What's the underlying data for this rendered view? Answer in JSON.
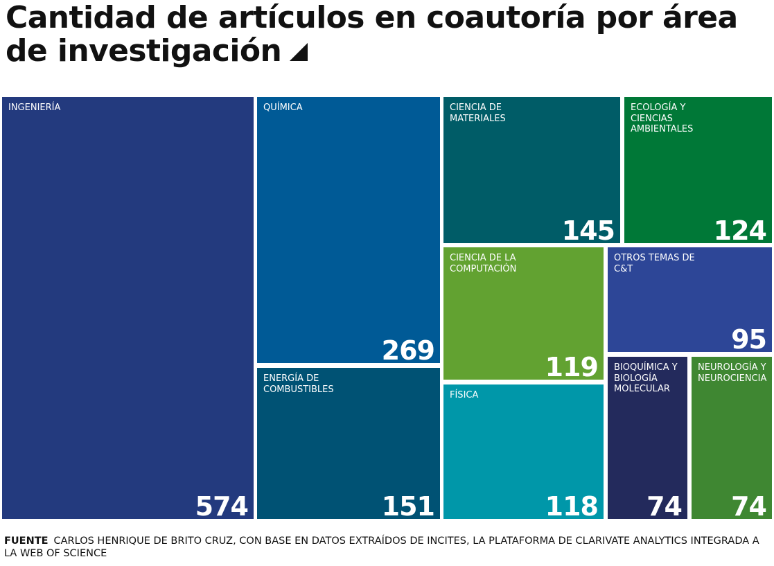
{
  "header": {
    "title": "Cantidad de artículos en coautoría por área de investigación"
  },
  "chart_data": {
    "type": "treemap",
    "title": "Cantidad de artículos en coautoría por área de investigación",
    "items": [
      {
        "label": "INGENIERÍA",
        "value": 574,
        "color": "#233a7e"
      },
      {
        "label": "QUÍMICA",
        "value": 269,
        "color": "#005a96"
      },
      {
        "label": "ENERGÍA DE COMBUSTIBLES",
        "value": 151,
        "color": "#005274"
      },
      {
        "label": "CIENCIA DE MATERIALES",
        "value": 145,
        "color": "#005c67"
      },
      {
        "label": "ECOLOGÍA Y CIENCIAS AMBIENTALES",
        "value": 124,
        "color": "#007837"
      },
      {
        "label": "CIENCIA DE LA COMPUTACIÓN",
        "value": 119,
        "color": "#62a231"
      },
      {
        "label": "FÍSICA",
        "value": 118,
        "color": "#0097a9"
      },
      {
        "label": "OTROS TEMAS DE C&T",
        "value": 95,
        "color": "#2d4697"
      },
      {
        "label": "BIOQUÍMICA Y BIOLOGÍA MOLECULAR",
        "value": 74,
        "color": "#232a5c"
      },
      {
        "label": "NEUROLOGÍA Y NEUROCIENCIA",
        "value": 74,
        "color": "#3f8732"
      }
    ]
  },
  "footer": {
    "lead": "FUENTE",
    "text": "CARLOS HENRIQUE DE BRITO CRUZ, CON BASE EN DATOS EXTRAÍDOS DE INCITES, LA PLATAFORMA DE CLARIVATE ANALYTICS INTEGRADA A LA WEB OF SCIENCE"
  }
}
